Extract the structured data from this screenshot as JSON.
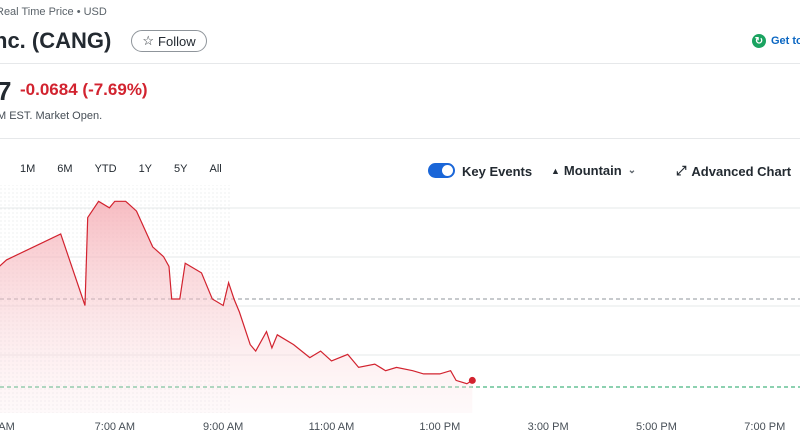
{
  "header": {
    "source_line": "Real Time Price • USD",
    "title": "nc. (CANG)",
    "follow_label": "Follow",
    "follow_icon": "star-icon",
    "get_label": "Get to",
    "get_icon": "green-badge-icon"
  },
  "quote": {
    "price_fragment": "7",
    "change": "-0.0684",
    "change_pct": "(-7.69%)",
    "change_color": "#d2232f",
    "status": "M EST. Market Open."
  },
  "chart_controls": {
    "ranges": [
      "1M",
      "6M",
      "YTD",
      "1Y",
      "5Y",
      "All"
    ],
    "key_events_label": "Key Events",
    "key_events_on": true,
    "chart_type_label": "Mountain",
    "advanced_label": "Advanced Chart"
  },
  "chart_data": {
    "type": "area",
    "x": [
      4.8,
      5.0,
      5.5,
      6.0,
      6.45,
      6.5,
      6.7,
      6.9,
      7.0,
      7.2,
      7.4,
      7.7,
      7.9,
      8.0,
      8.05,
      8.2,
      8.3,
      8.6,
      8.8,
      9.0,
      9.1,
      9.2,
      9.3,
      9.5,
      9.6,
      9.8,
      9.9,
      10.0,
      10.3,
      10.6,
      10.8,
      11.0,
      11.3,
      11.5,
      11.8,
      12.0,
      12.2,
      12.5,
      12.7,
      13.0,
      13.2,
      13.3,
      13.5,
      13.6
    ],
    "y": [
      0.889,
      0.892,
      0.896,
      0.9,
      0.878,
      0.905,
      0.91,
      0.908,
      0.91,
      0.91,
      0.907,
      0.896,
      0.893,
      0.89,
      0.88,
      0.88,
      0.891,
      0.888,
      0.88,
      0.878,
      0.885,
      0.88,
      0.876,
      0.866,
      0.864,
      0.87,
      0.865,
      0.869,
      0.866,
      0.862,
      0.864,
      0.861,
      0.863,
      0.859,
      0.86,
      0.858,
      0.859,
      0.858,
      0.857,
      0.857,
      0.858,
      0.855,
      0.854,
      0.855
    ],
    "x_ticks": [
      "AM",
      "7:00 AM",
      "9:00 AM",
      "11:00 AM",
      "1:00 PM",
      "3:00 PM",
      "5:00 PM",
      "7:00 PM"
    ],
    "x_tick_values": [
      5,
      7,
      9,
      11,
      13,
      15,
      17,
      19
    ],
    "xlim": [
      4.88,
      19.65
    ],
    "ylim": [
      0.845,
      0.915
    ],
    "reference_lines": [
      {
        "value": 0.88,
        "color": "#8f959b",
        "style": "dashed"
      },
      {
        "value": 0.853,
        "color": "#1aa360",
        "style": "dashed"
      }
    ],
    "grid": true,
    "line_color": "#d2232f",
    "fill_color": "#f8c7cc"
  }
}
